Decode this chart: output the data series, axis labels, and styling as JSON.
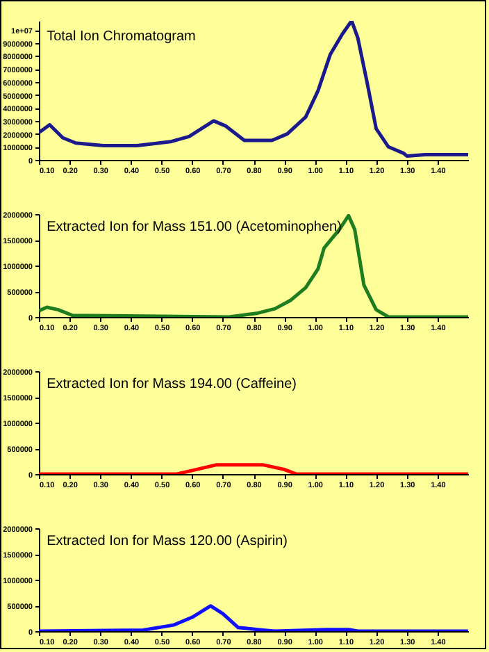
{
  "chart_data": [
    {
      "type": "line",
      "title": "Total Ion Chromatogram",
      "grid": false,
      "x": [
        0.1,
        0.135,
        0.178,
        0.22,
        0.31,
        0.42,
        0.53,
        0.59,
        0.63,
        0.67,
        0.71,
        0.77,
        0.86,
        0.91,
        0.97,
        1.01,
        1.05,
        1.09,
        1.12,
        1.14,
        1.17,
        1.2,
        1.24,
        1.29,
        1.3,
        1.36,
        1.5
      ],
      "series": [
        {
          "color": "#1a1a8c",
          "values": [
            2100000,
            2700000,
            1700000,
            1300000,
            1100000,
            1100000,
            1400000,
            1800000,
            2400000,
            3000000,
            2600000,
            1500000,
            1500000,
            2000000,
            3300000,
            5300000,
            8100000,
            9700000,
            10700000,
            9400000,
            6000000,
            2400000,
            1000000,
            500000,
            300000,
            400000,
            400000
          ]
        }
      ],
      "xlim": [
        0.1,
        1.5
      ],
      "ylim": [
        0,
        10700000
      ],
      "xticks": [
        {
          "value": 0.1,
          "label": "0.10"
        },
        {
          "value": 0.2,
          "label": "0.20"
        },
        {
          "value": 0.3,
          "label": "0.30"
        },
        {
          "value": 0.4,
          "label": "0.40"
        },
        {
          "value": 0.5,
          "label": "0.50"
        },
        {
          "value": 0.6,
          "label": "0.60"
        },
        {
          "value": 0.7,
          "label": "0.70"
        },
        {
          "value": 0.8,
          "label": "0.80"
        },
        {
          "value": 0.9,
          "label": "0.90"
        },
        {
          "value": 1.0,
          "label": "1.00"
        },
        {
          "value": 1.1,
          "label": "1.10"
        },
        {
          "value": 1.2,
          "label": "1.20"
        },
        {
          "value": 1.3,
          "label": "1.30"
        },
        {
          "value": 1.4,
          "label": "1.40"
        }
      ],
      "yticks": [
        0,
        1000000,
        2000000,
        3000000,
        4000000,
        5000000,
        6000000,
        7000000,
        8000000,
        9000000,
        {
          "value": 10000000,
          "label": "1e+07"
        }
      ]
    },
    {
      "type": "line",
      "title": "Extracted Ion for Mass 151.00  (Acetominophen)",
      "grid": false,
      "x": [
        0.1,
        0.126,
        0.163,
        0.21,
        0.72,
        0.81,
        0.87,
        0.92,
        0.97,
        1.01,
        1.03,
        1.08,
        1.11,
        1.13,
        1.16,
        1.2,
        1.24,
        1.5
      ],
      "series": [
        {
          "color": "#1e7d1e",
          "values": [
            120000,
            190000,
            140000,
            30000,
            0,
            70000,
            160000,
            320000,
            570000,
            930000,
            1340000,
            1700000,
            1970000,
            1700000,
            620000,
            140000,
            0,
            0
          ]
        }
      ],
      "xlim": [
        0.1,
        1.5
      ],
      "ylim": [
        0,
        2000000
      ],
      "xticks": [
        {
          "value": 0.1,
          "label": "0.10"
        },
        {
          "value": 0.2,
          "label": "0.20"
        },
        {
          "value": 0.3,
          "label": "0.30"
        },
        {
          "value": 0.4,
          "label": "0.40"
        },
        {
          "value": 0.5,
          "label": "0.50"
        },
        {
          "value": 0.6,
          "label": "0.60"
        },
        {
          "value": 0.7,
          "label": "0.70"
        },
        {
          "value": 0.8,
          "label": "0.80"
        },
        {
          "value": 0.9,
          "label": "0.90"
        },
        {
          "value": 1.0,
          "label": "1.00"
        },
        {
          "value": 1.1,
          "label": "1.10"
        },
        {
          "value": 1.2,
          "label": "1.20"
        },
        {
          "value": 1.3,
          "label": "1.30"
        },
        {
          "value": 1.4,
          "label": "1.40"
        }
      ],
      "yticks": [
        0,
        500000,
        1000000,
        1500000,
        2000000
      ]
    },
    {
      "type": "line",
      "title": "Extracted Ion for Mass 194.00 (Caffeine)",
      "grid": false,
      "x": [
        0.1,
        0.55,
        0.6,
        0.68,
        0.83,
        0.9,
        0.94,
        1.5
      ],
      "series": [
        {
          "color": "#ff0000",
          "values": [
            0,
            0,
            70000,
            180000,
            180000,
            90000,
            0,
            0
          ]
        }
      ],
      "xlim": [
        0.1,
        1.5
      ],
      "ylim": [
        0,
        2000000
      ],
      "xticks": [
        {
          "value": 0.1,
          "label": "0.10"
        },
        {
          "value": 0.2,
          "label": "0.20"
        },
        {
          "value": 0.3,
          "label": "0.30"
        },
        {
          "value": 0.4,
          "label": "0.40"
        },
        {
          "value": 0.5,
          "label": "0.50"
        },
        {
          "value": 0.6,
          "label": "0.60"
        },
        {
          "value": 0.7,
          "label": "0.70"
        },
        {
          "value": 0.8,
          "label": "0.80"
        },
        {
          "value": 0.9,
          "label": "0.90"
        },
        {
          "value": 1.0,
          "label": "1.00"
        },
        {
          "value": 1.1,
          "label": "1.10"
        },
        {
          "value": 1.2,
          "label": "1.20"
        },
        {
          "value": 1.3,
          "label": "1.30"
        },
        {
          "value": 1.4,
          "label": "1.40"
        }
      ],
      "yticks": [
        0,
        500000,
        1000000,
        1500000,
        2000000
      ]
    },
    {
      "type": "line",
      "title": "Extracted Ion for Mass 120.00 (Aspirin)",
      "grid": false,
      "x": [
        0.1,
        0.44,
        0.54,
        0.6,
        0.66,
        0.7,
        0.75,
        0.83,
        0.87,
        1.04,
        1.11,
        1.14,
        1.5
      ],
      "series": [
        {
          "color": "#1010ff",
          "values": [
            0,
            20000,
            120000,
            270000,
            490000,
            340000,
            70000,
            20000,
            0,
            30000,
            30000,
            0,
            0
          ]
        }
      ],
      "xlim": [
        0.1,
        1.5
      ],
      "ylim": [
        0,
        2000000
      ],
      "xticks": [
        {
          "value": 0.1,
          "label": "0.10"
        },
        {
          "value": 0.2,
          "label": "0.20"
        },
        {
          "value": 0.3,
          "label": "0.30"
        },
        {
          "value": 0.4,
          "label": "0.40"
        },
        {
          "value": 0.5,
          "label": "0.50"
        },
        {
          "value": 0.6,
          "label": "0.60"
        },
        {
          "value": 0.7,
          "label": "0.70"
        },
        {
          "value": 0.8,
          "label": "0.80"
        },
        {
          "value": 0.9,
          "label": "0.90"
        },
        {
          "value": 1.0,
          "label": "1.00"
        },
        {
          "value": 1.1,
          "label": "1.10"
        },
        {
          "value": 1.2,
          "label": "1.20"
        },
        {
          "value": 1.3,
          "label": "1.30"
        },
        {
          "value": 1.4,
          "label": "1.40"
        }
      ],
      "yticks": [
        0,
        500000,
        1000000,
        1500000,
        2000000
      ]
    }
  ]
}
